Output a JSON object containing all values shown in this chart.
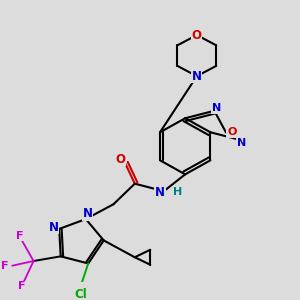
{
  "background_color": "#dcdcdc",
  "figsize": [
    3.0,
    3.0
  ],
  "dpi": 100,
  "colors": {
    "C": "#000000",
    "N": "#0000cc",
    "O": "#cc0000",
    "F": "#cc00cc",
    "Cl": "#00aa00",
    "H": "#008080",
    "bond": "#000000"
  }
}
